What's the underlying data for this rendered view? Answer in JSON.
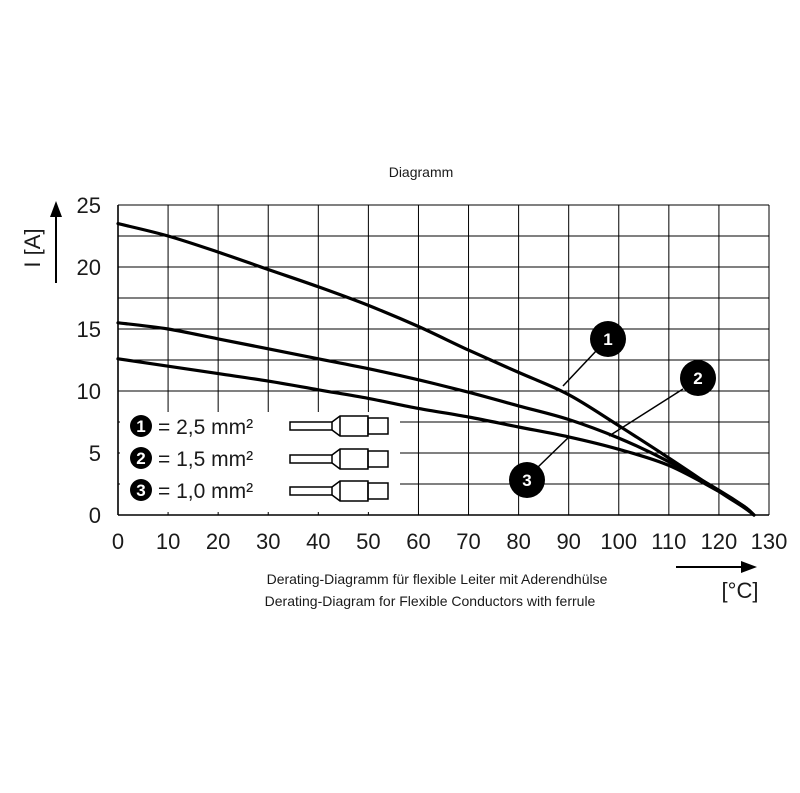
{
  "chart_data": {
    "type": "line",
    "title": "Diagramm",
    "xlabel": "[°C]",
    "ylabel": "I [A]",
    "xlim": [
      0,
      130
    ],
    "ylim": [
      0,
      25
    ],
    "xticks": [
      "0",
      "10",
      "20",
      "30",
      "40",
      "50",
      "60",
      "70",
      "80",
      "90",
      "100",
      "110",
      "120",
      "130"
    ],
    "yticks": [
      "0",
      "5",
      "10",
      "15",
      "20",
      "25"
    ],
    "grid": true,
    "captions": [
      "Derating-Diagramm für flexible Leiter mit Aderendhülse",
      "Derating-Diagram for Flexible Conductors with ferrule"
    ],
    "legend": [
      {
        "marker": "1",
        "text": "= 2,5 mm²"
      },
      {
        "marker": "2",
        "text": "= 1,5 mm²"
      },
      {
        "marker": "3",
        "text": "= 1,0 mm²"
      }
    ],
    "series": [
      {
        "marker": "1",
        "x": [
          0,
          10,
          20,
          30,
          40,
          50,
          60,
          70,
          80,
          90,
          100,
          110,
          120,
          125,
          127
        ],
        "y": [
          23.5,
          22.5,
          21.2,
          19.8,
          18.4,
          16.9,
          15.2,
          13.3,
          11.5,
          9.7,
          7.2,
          4.6,
          1.9,
          0.6,
          0
        ]
      },
      {
        "marker": "2",
        "x": [
          0,
          10,
          20,
          30,
          40,
          50,
          60,
          70,
          80,
          90,
          100,
          110,
          120,
          125,
          127
        ],
        "y": [
          15.5,
          15.0,
          14.2,
          13.4,
          12.6,
          11.8,
          10.9,
          9.9,
          8.8,
          7.7,
          6.2,
          4.3,
          2.0,
          0.7,
          0
        ]
      },
      {
        "marker": "3",
        "x": [
          0,
          10,
          20,
          30,
          40,
          50,
          60,
          70,
          80,
          90,
          100,
          110,
          120,
          125,
          127
        ],
        "y": [
          12.6,
          12.0,
          11.4,
          10.8,
          10.1,
          9.4,
          8.6,
          7.9,
          7.1,
          6.3,
          5.3,
          4.0,
          1.9,
          0.7,
          0
        ]
      }
    ]
  }
}
